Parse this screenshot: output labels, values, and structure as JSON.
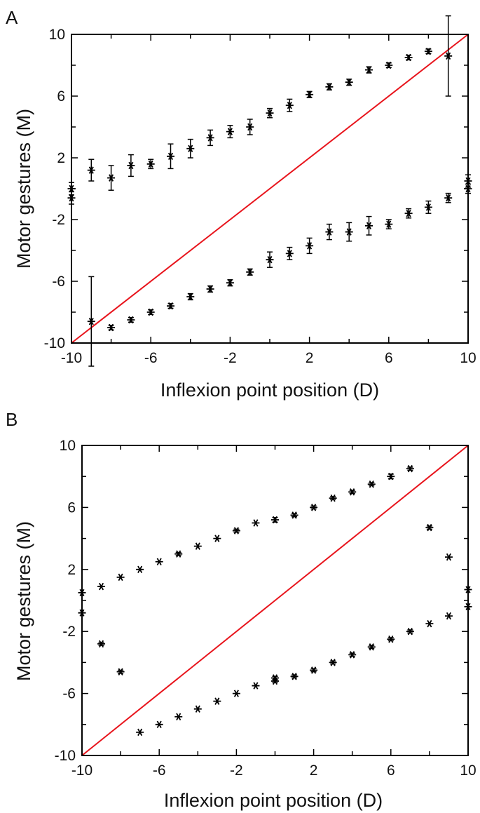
{
  "chart_data": [
    {
      "type": "scatter",
      "panel_label": "A",
      "title": "",
      "xlabel": "Inflexion point position (D)",
      "ylabel": "Motor gestures (M)",
      "xlim": [
        -10,
        10
      ],
      "ylim": [
        -10,
        10
      ],
      "xticks": [
        -10,
        -6,
        -2,
        2,
        6,
        10
      ],
      "yticks": [
        -10,
        -6,
        -2,
        2,
        6,
        10
      ],
      "grid": false,
      "marker": "asterisk",
      "reference_line": {
        "x": [
          -10,
          10
        ],
        "y": [
          -10,
          10
        ],
        "color": "#e8141c"
      },
      "series": [
        {
          "points": [
            {
              "x": -10,
              "y": 0.0,
              "err": 0.4
            },
            {
              "x": -10,
              "y": -0.6,
              "err": 0.4
            },
            {
              "x": -9,
              "y": 1.2,
              "err": 0.7
            },
            {
              "x": -8,
              "y": 0.7,
              "err": 0.8
            },
            {
              "x": -7,
              "y": 1.5,
              "err": 0.7
            },
            {
              "x": -6,
              "y": 1.6,
              "err": 0.3
            },
            {
              "x": -5,
              "y": 2.1,
              "err": 0.8
            },
            {
              "x": -4,
              "y": 2.6,
              "err": 0.6
            },
            {
              "x": -3,
              "y": 3.3,
              "err": 0.5
            },
            {
              "x": -2,
              "y": 3.7,
              "err": 0.4
            },
            {
              "x": -1,
              "y": 4.0,
              "err": 0.5
            },
            {
              "x": 0,
              "y": 4.9,
              "err": 0.3
            },
            {
              "x": 1,
              "y": 5.4,
              "err": 0.4
            },
            {
              "x": 2,
              "y": 6.1,
              "err": 0.2
            },
            {
              "x": 3,
              "y": 6.6,
              "err": 0.2
            },
            {
              "x": 4,
              "y": 6.9,
              "err": 0.2
            },
            {
              "x": 5,
              "y": 7.7,
              "err": 0.2
            },
            {
              "x": 6,
              "y": 8.0,
              "err": 0.15
            },
            {
              "x": 7,
              "y": 8.5,
              "err": 0.15
            },
            {
              "x": 8,
              "y": 8.9,
              "err": 0.15
            },
            {
              "x": 9,
              "y": 8.6,
              "err": 2.6
            },
            {
              "x": -9,
              "y": -8.6,
              "err": 2.9
            },
            {
              "x": -8,
              "y": -9.0,
              "err": 0.15
            },
            {
              "x": -7,
              "y": -8.5,
              "err": 0.15
            },
            {
              "x": -6,
              "y": -8.0,
              "err": 0.15
            },
            {
              "x": -5,
              "y": -7.6,
              "err": 0.15
            },
            {
              "x": -4,
              "y": -7.0,
              "err": 0.2
            },
            {
              "x": -3,
              "y": -6.5,
              "err": 0.2
            },
            {
              "x": -2,
              "y": -6.1,
              "err": 0.2
            },
            {
              "x": -1,
              "y": -5.4,
              "err": 0.2
            },
            {
              "x": 0,
              "y": -4.6,
              "err": 0.5
            },
            {
              "x": 1,
              "y": -4.2,
              "err": 0.4
            },
            {
              "x": 2,
              "y": -3.7,
              "err": 0.5
            },
            {
              "x": 3,
              "y": -2.8,
              "err": 0.5
            },
            {
              "x": 4,
              "y": -2.8,
              "err": 0.6
            },
            {
              "x": 5,
              "y": -2.4,
              "err": 0.6
            },
            {
              "x": 6,
              "y": -2.3,
              "err": 0.3
            },
            {
              "x": 7,
              "y": -1.6,
              "err": 0.3
            },
            {
              "x": 8,
              "y": -1.2,
              "err": 0.4
            },
            {
              "x": 9,
              "y": -0.6,
              "err": 0.3
            },
            {
              "x": 10,
              "y": 0.5,
              "err": 0.4
            },
            {
              "x": 10,
              "y": 0.0,
              "err": 0.3
            }
          ]
        }
      ]
    },
    {
      "type": "scatter",
      "panel_label": "B",
      "title": "",
      "xlabel": "Inflexion point position (D)",
      "ylabel": "Motor gestures (M)",
      "xlim": [
        -10,
        10
      ],
      "ylim": [
        -10,
        10
      ],
      "xticks": [
        -10,
        -6,
        -2,
        2,
        6,
        10
      ],
      "yticks": [
        -10,
        -6,
        -2,
        2,
        6,
        10
      ],
      "grid": false,
      "marker": "asterisk",
      "reference_line": {
        "x": [
          -10,
          10
        ],
        "y": [
          -10,
          10
        ],
        "color": "#e8141c"
      },
      "series": [
        {
          "points": [
            {
              "x": -10,
              "y": 0.5,
              "err": 0
            },
            {
              "x": -10,
              "y": -0.8,
              "err": 0
            },
            {
              "x": -9,
              "y": 0.9,
              "err": 0
            },
            {
              "x": -8,
              "y": 1.5,
              "err": 0
            },
            {
              "x": -7,
              "y": 2.0,
              "err": 0
            },
            {
              "x": -6,
              "y": 2.5,
              "err": 0
            },
            {
              "x": -5,
              "y": 3.0,
              "err": 0.1
            },
            {
              "x": -4,
              "y": 3.5,
              "err": 0
            },
            {
              "x": -3,
              "y": 4.0,
              "err": 0
            },
            {
              "x": -2,
              "y": 4.5,
              "err": 0.1
            },
            {
              "x": -1,
              "y": 5.0,
              "err": 0
            },
            {
              "x": 0,
              "y": 5.2,
              "err": 0.15
            },
            {
              "x": 1,
              "y": 5.5,
              "err": 0.1
            },
            {
              "x": 2,
              "y": 6.0,
              "err": 0.1
            },
            {
              "x": 3,
              "y": 6.6,
              "err": 0.1
            },
            {
              "x": 4,
              "y": 7.0,
              "err": 0.1
            },
            {
              "x": 5,
              "y": 7.5,
              "err": 0.1
            },
            {
              "x": 6,
              "y": 8.0,
              "err": 0.15
            },
            {
              "x": 7,
              "y": 8.5,
              "err": 0.1
            },
            {
              "x": 8,
              "y": 4.7,
              "err": 0.1
            },
            {
              "x": 9,
              "y": 2.8,
              "err": 0
            },
            {
              "x": 10,
              "y": 0.7,
              "err": 0
            },
            {
              "x": 10,
              "y": -0.4,
              "err": 0
            },
            {
              "x": -9,
              "y": -2.8,
              "err": 0.1
            },
            {
              "x": -8,
              "y": -4.6,
              "err": 0.1
            },
            {
              "x": -7,
              "y": -8.5,
              "err": 0
            },
            {
              "x": -6,
              "y": -8.0,
              "err": 0
            },
            {
              "x": -5,
              "y": -7.5,
              "err": 0
            },
            {
              "x": -4,
              "y": -7.0,
              "err": 0
            },
            {
              "x": -3,
              "y": -6.5,
              "err": 0
            },
            {
              "x": -2,
              "y": -6.0,
              "err": 0
            },
            {
              "x": -1,
              "y": -5.5,
              "err": 0
            },
            {
              "x": 0,
              "y": -5.0,
              "err": 0.1
            },
            {
              "x": 0,
              "y": -5.2,
              "err": 0.1
            },
            {
              "x": 1,
              "y": -4.9,
              "err": 0.1
            },
            {
              "x": 2,
              "y": -4.5,
              "err": 0.1
            },
            {
              "x": 3,
              "y": -4.0,
              "err": 0.1
            },
            {
              "x": 4,
              "y": -3.5,
              "err": 0.1
            },
            {
              "x": 5,
              "y": -3.0,
              "err": 0.1
            },
            {
              "x": 6,
              "y": -2.5,
              "err": 0.1
            },
            {
              "x": 7,
              "y": -2.0,
              "err": 0.1
            },
            {
              "x": 8,
              "y": -1.5,
              "err": 0
            },
            {
              "x": 9,
              "y": -1.0,
              "err": 0
            }
          ]
        }
      ]
    }
  ]
}
